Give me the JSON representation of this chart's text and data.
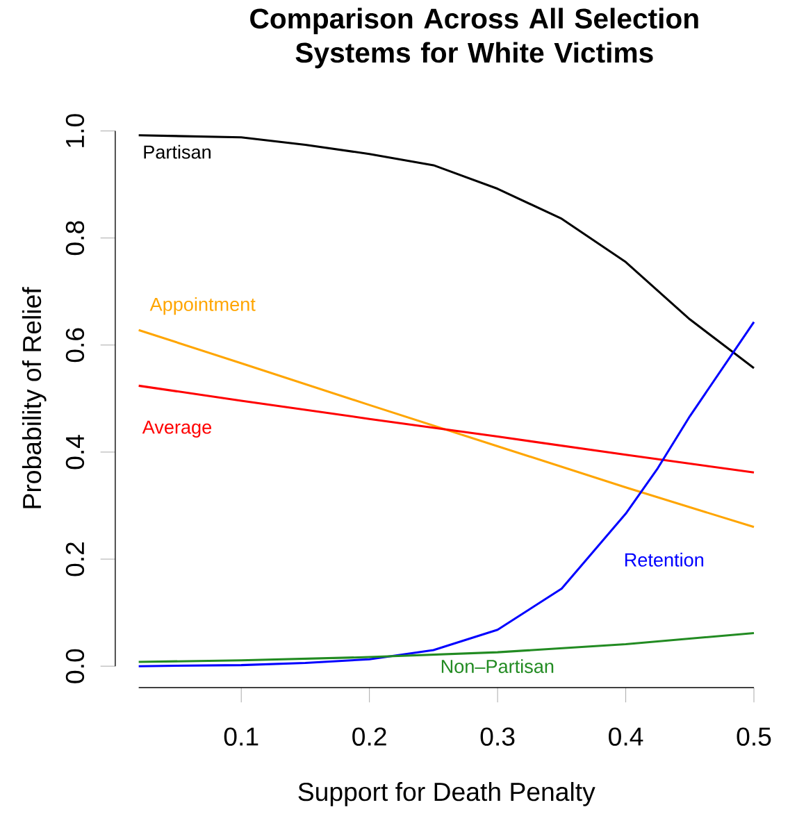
{
  "chart_data": {
    "type": "line",
    "title": "Comparison Across All Selection Systems for White Victims",
    "xlabel": "Support for Death Penalty",
    "ylabel": "Probability of Relief",
    "xlim": [
      0.02,
      0.5
    ],
    "ylim": [
      0,
      1
    ],
    "xticks": [
      0.1,
      0.2,
      0.3,
      0.4,
      0.5
    ],
    "yticks": [
      {
        "value": 0,
        "label": "0.0"
      },
      0.2,
      0.4,
      0.6,
      0.8,
      {
        "value": 1,
        "label": "1.0"
      }
    ],
    "series": [
      {
        "name": "Partisan",
        "color": "#000000",
        "x": [
          0.02,
          0.1,
          0.15,
          0.2,
          0.25,
          0.3,
          0.35,
          0.4,
          0.45,
          0.5
        ],
        "values": [
          0.992,
          0.988,
          0.974,
          0.957,
          0.936,
          0.892,
          0.836,
          0.755,
          0.648,
          0.557
        ]
      },
      {
        "name": "Appointment",
        "color": "#ffa500",
        "x": [
          0.02,
          0.1,
          0.2,
          0.3,
          0.4,
          0.5
        ],
        "values": [
          0.628,
          0.566,
          0.488,
          0.411,
          0.334,
          0.26
        ]
      },
      {
        "name": "Average",
        "color": "#ff0000",
        "x": [
          0.02,
          0.1,
          0.2,
          0.3,
          0.4,
          0.5
        ],
        "values": [
          0.524,
          0.496,
          0.462,
          0.429,
          0.395,
          0.362
        ]
      },
      {
        "name": "Retention",
        "color": "#0000ff",
        "x": [
          0.02,
          0.1,
          0.15,
          0.2,
          0.25,
          0.3,
          0.35,
          0.4,
          0.425,
          0.45,
          0.5
        ],
        "values": [
          0.0,
          0.002,
          0.006,
          0.013,
          0.03,
          0.068,
          0.145,
          0.285,
          0.37,
          0.467,
          0.643
        ]
      },
      {
        "name": "Non–Partisan",
        "color": "#228b22",
        "x": [
          0.02,
          0.1,
          0.2,
          0.3,
          0.4,
          0.5
        ],
        "values": [
          0.008,
          0.011,
          0.017,
          0.026,
          0.041,
          0.062
        ]
      }
    ]
  }
}
